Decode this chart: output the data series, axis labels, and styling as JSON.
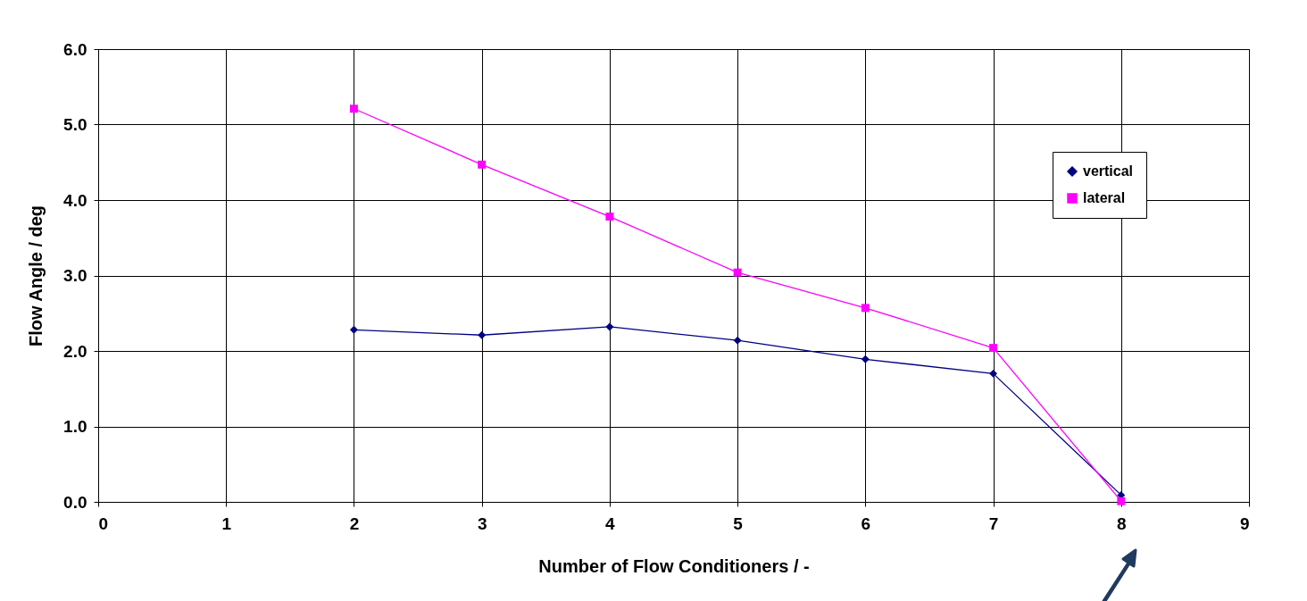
{
  "chart_data": {
    "type": "line",
    "xlabel": "Number of Flow Conditioners / -",
    "ylabel": "Flow Angle / deg",
    "xlim": [
      0,
      9
    ],
    "xticks": [
      0,
      1,
      2,
      3,
      4,
      5,
      6,
      7,
      8,
      9
    ],
    "ylim": [
      0,
      6
    ],
    "yticks": [
      {
        "value": 0,
        "label": "0.0"
      },
      {
        "value": 1,
        "label": "1.0"
      },
      {
        "value": 2,
        "label": "2.0"
      },
      {
        "value": 3,
        "label": "3.0"
      },
      {
        "value": 4,
        "label": "4.0"
      },
      {
        "value": 5,
        "label": "5.0"
      },
      {
        "value": 6,
        "label": "6.0"
      }
    ],
    "x": [
      2,
      3,
      4,
      5,
      6,
      7,
      8
    ],
    "series": [
      {
        "name": "vertical",
        "color": "#000080",
        "marker": "diamond",
        "values": [
          2.28,
          2.21,
          2.32,
          2.14,
          1.89,
          1.7,
          0.09
        ]
      },
      {
        "name": "lateral",
        "color": "#ff00ff",
        "marker": "square",
        "values": [
          5.21,
          4.47,
          3.78,
          3.04,
          2.57,
          2.04,
          0.01
        ]
      }
    ],
    "grid": true,
    "legend": "top right",
    "line_style": "solid"
  }
}
